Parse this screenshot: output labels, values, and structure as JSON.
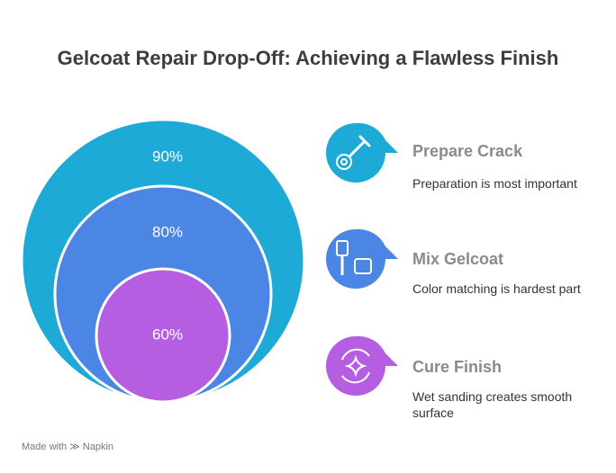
{
  "title": "Gelcoat Repair Drop-Off: Achieving a Flawless Finish",
  "items": [
    {
      "value": "90%",
      "heading": "Prepare Crack",
      "description": "Preparation is most important"
    },
    {
      "value": "80%",
      "heading": "Mix Gelcoat",
      "description": "Color matching is hardest part"
    },
    {
      "value": "60%",
      "heading": "Cure Finish",
      "description": "Wet sanding creates smooth surface"
    }
  ],
  "footer": "Made with ≫ Napkin"
}
